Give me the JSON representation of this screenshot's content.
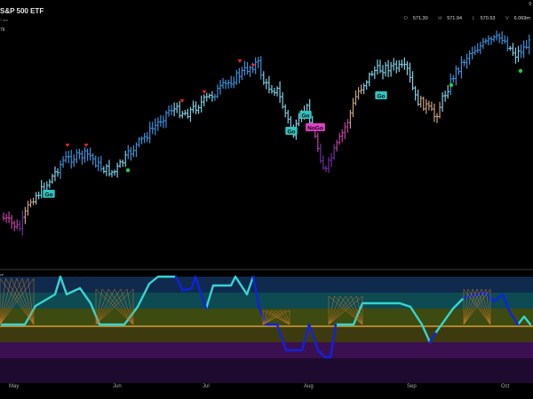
{
  "header": {
    "title": "S&P 500 ETF",
    "subtitle": "7.am",
    "value_left": "76",
    "top_right": "9",
    "ohlc": [
      {
        "key": "O",
        "value": "571.30"
      },
      {
        "key": "H",
        "value": "571.94"
      },
      {
        "key": "L",
        "value": "570.53"
      },
      {
        "key": "V",
        "value": "6.069m"
      }
    ]
  },
  "oscillator_label": "ze",
  "chart_data": {
    "type": "line",
    "subtype": "gogo-bars-with-oscillator",
    "x_months": [
      "May",
      "Jun",
      "Jul",
      "Aug",
      "Sep",
      "Oct"
    ],
    "annotations": [
      {
        "text": "Go",
        "color": "#2ec4c0"
      },
      {
        "text": "Go",
        "color": "#2ec4c0"
      },
      {
        "text": "NoGo",
        "color": "#e040c8"
      },
      {
        "text": "Go",
        "color": "#2ec4c0"
      },
      {
        "text": "Go",
        "color": "#2ec4c0"
      }
    ],
    "colors": {
      "strong_go": "#3b8fd9",
      "weak_go": "#7fd0e6",
      "neutral": "#c8a080",
      "weak_nogo": "#c040a0",
      "strong_nogo": "#7030a0",
      "go_label": "#2ec4c0",
      "nogo_label": "#e040c8",
      "signal_up": "#22cc44",
      "signal_down": "#ee2222",
      "osc_line_go": "#33d6d0",
      "osc_line_nogo": "#1122dd",
      "zero_line": "#d4a030"
    }
  }
}
